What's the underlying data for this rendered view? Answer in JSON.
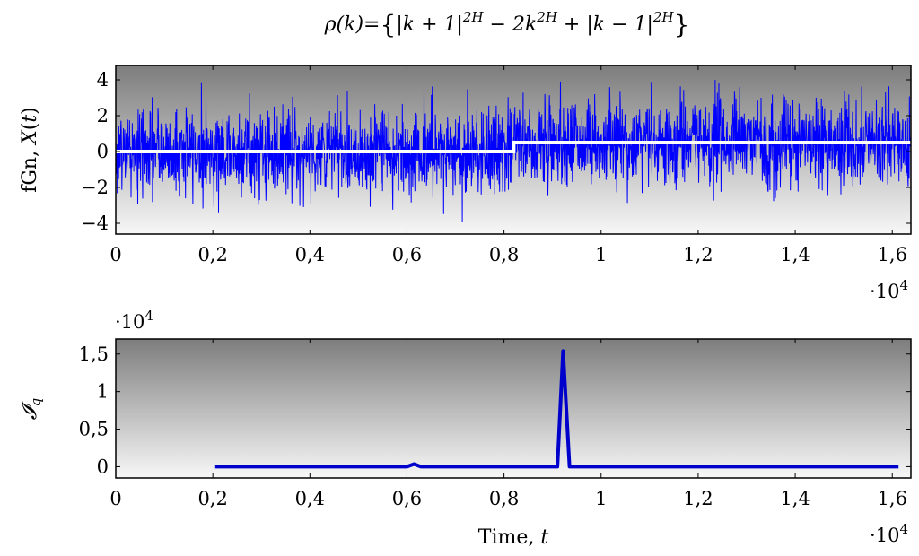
{
  "title": "ρ(k)= {|k + 1|^2H − 2k^2H + |k − 1|^2H}",
  "chart_data": [
    {
      "type": "line",
      "ylabel": "fGn, X(t)",
      "xlim": [
        0,
        16384
      ],
      "ylim": [
        -4.6,
        4.8
      ],
      "x_ticks": [
        0,
        2000,
        4000,
        6000,
        8000,
        10000,
        12000,
        14000,
        16000
      ],
      "x_tick_labels": [
        "0",
        "0,2",
        "0,4",
        "0,6",
        "0,8",
        "1",
        "1,2",
        "1,4",
        "1,6"
      ],
      "x_scale_label": "·10^4",
      "y_ticks": [
        -4,
        -2,
        0,
        2,
        4
      ],
      "y_tick_labels": [
        "−4",
        "−2",
        "0",
        "2",
        "4"
      ],
      "background": "vertical gradient gray to white",
      "series": [
        {
          "color": "#0000ff",
          "noise": {
            "n": 16384,
            "mean_before": 0.0,
            "mean_after": 0.5,
            "change_at": 8200,
            "approx_std": 1.2,
            "min": -3.9,
            "max": 4.0
          }
        },
        {
          "color": "#ffffff",
          "step": {
            "x": [
              0,
              8200,
              8200,
              16384
            ],
            "y": [
              0.0,
              0.0,
              0.5,
              0.5
            ]
          }
        }
      ]
    },
    {
      "type": "line",
      "ylabel": "𝓘_q",
      "xlabel": "Time, t",
      "xlim": [
        0,
        16384
      ],
      "ylim": [
        -1500,
        17000
      ],
      "x_ticks": [
        0,
        2000,
        4000,
        6000,
        8000,
        10000,
        12000,
        14000,
        16000
      ],
      "x_tick_labels": [
        "0",
        "0,2",
        "0,4",
        "0,6",
        "0,8",
        "1",
        "1,2",
        "1,4",
        "1,6"
      ],
      "x_scale_label": "·10^4",
      "y_ticks": [
        0,
        5000,
        10000,
        15000
      ],
      "y_tick_labels": [
        "0",
        "0,5",
        "1",
        "1,5"
      ],
      "y_scale_label": "·10^4",
      "background": "vertical gradient gray to white",
      "series": [
        {
          "color": "#0000cc",
          "x": [
            2048,
            6000,
            6144,
            6288,
            6500,
            9000,
            9100,
            9216,
            9350,
            9450,
            16128
          ],
          "y": [
            0,
            0,
            350,
            0,
            0,
            0,
            0,
            15400,
            0,
            0,
            0
          ]
        }
      ]
    }
  ]
}
